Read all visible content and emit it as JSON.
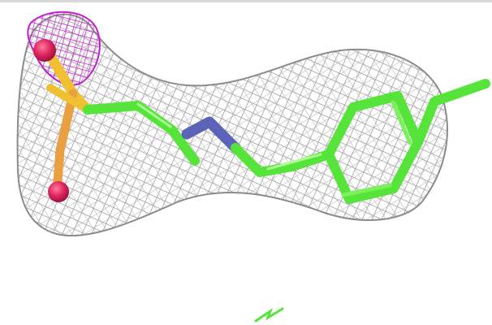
{
  "scene": {
    "background": "#ffffff",
    "colors": {
      "mesh_gray": "#9a9a9a",
      "mesh_magenta": "#c020c8",
      "carbon_green": "#56e33a",
      "nitrogen_blue": "#5b64b6",
      "sulfur_yellow": "#f0c030",
      "oxygen_red": "#e0265f"
    },
    "elements": [
      "electron-density-mesh",
      "difference-density-mesh",
      "ligand-stick-model",
      "small-fragment"
    ]
  }
}
